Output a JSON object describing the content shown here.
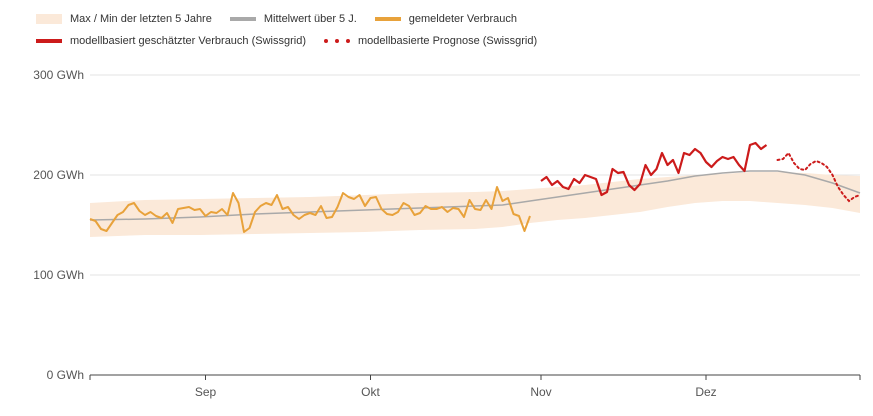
{
  "chart_data": {
    "type": "line",
    "title": "",
    "xlabel": "",
    "ylabel": "",
    "ylim": [
      0,
      300
    ],
    "y_unit": "GWh",
    "y_ticks": [
      {
        "value": 0,
        "label": "0 GWh"
      },
      {
        "value": 100,
        "label": "100 GWh"
      },
      {
        "value": 200,
        "label": "200 GWh"
      },
      {
        "value": 300,
        "label": "300 GWh"
      }
    ],
    "x_range_days": [
      0,
      140
    ],
    "x_ticks": [
      {
        "day": 21,
        "label": "Sep"
      },
      {
        "day": 51,
        "label": "Okt"
      },
      {
        "day": 82,
        "label": "Nov"
      },
      {
        "day": 112,
        "label": "Dez"
      }
    ],
    "grid": true,
    "legend": [
      {
        "key": "band",
        "label": "Max / Min der letzten 5 Jahre"
      },
      {
        "key": "mean",
        "label": "Mittelwert über 5 J."
      },
      {
        "key": "reported",
        "label": "gemeldeter Verbrauch"
      },
      {
        "key": "estimated",
        "label": "modellbasiert geschätzter Verbrauch (Swissgrid)"
      },
      {
        "key": "forecast",
        "label": "modellbasierte Prognose (Swissgrid)"
      }
    ],
    "colors": {
      "band": "#fbe9d9",
      "mean": "#a9a9a9",
      "reported": "#e8a23b",
      "estimated": "#cc1b1b",
      "forecast": "#cc1b1b",
      "grid": "#e3e3e3",
      "axis": "#444444"
    },
    "band": {
      "x": [
        0,
        10,
        20,
        30,
        40,
        50,
        60,
        70,
        75,
        80,
        85,
        90,
        95,
        100,
        105,
        110,
        115,
        120,
        125,
        130,
        135,
        140
      ],
      "max": [
        172,
        175,
        176,
        177,
        178,
        180,
        182,
        183,
        184,
        186,
        188,
        190,
        193,
        196,
        198,
        200,
        201,
        203,
        203,
        202,
        200,
        199
      ],
      "min": [
        138,
        140,
        140,
        141,
        142,
        143,
        145,
        146,
        148,
        152,
        155,
        157,
        160,
        163,
        168,
        172,
        174,
        174,
        172,
        170,
        167,
        162
      ]
    },
    "series": [
      {
        "name": "Mittelwert über 5 J.",
        "key": "mean",
        "x": [
          0,
          10,
          20,
          30,
          40,
          50,
          60,
          70,
          75,
          80,
          85,
          90,
          95,
          100,
          105,
          110,
          115,
          120,
          125,
          130,
          135,
          140
        ],
        "values": [
          155,
          156,
          158,
          161,
          163,
          165,
          167,
          169,
          170,
          174,
          178,
          182,
          186,
          190,
          194,
          199,
          202,
          204,
          204,
          200,
          192,
          182
        ]
      },
      {
        "name": "gemeldeter Verbrauch",
        "key": "reported",
        "x": [
          0,
          1,
          2,
          3,
          4,
          5,
          6,
          7,
          8,
          9,
          10,
          11,
          12,
          13,
          14,
          15,
          16,
          17,
          18,
          19,
          20,
          21,
          22,
          23,
          24,
          25,
          26,
          27,
          28,
          29,
          30,
          31,
          32,
          33,
          34,
          35,
          36,
          37,
          38,
          39,
          40,
          41,
          42,
          43,
          44,
          45,
          46,
          47,
          48,
          49,
          50,
          51,
          52,
          53,
          54,
          55,
          56,
          57,
          58,
          59,
          60,
          61,
          62,
          63,
          64,
          65,
          66,
          67,
          68,
          69,
          70,
          71,
          72,
          73,
          74,
          75,
          76,
          77,
          78,
          79,
          80
        ],
        "values": [
          156,
          154,
          146,
          144,
          152,
          160,
          163,
          170,
          172,
          164,
          160,
          163,
          159,
          157,
          162,
          152,
          166,
          167,
          168,
          165,
          166,
          159,
          163,
          162,
          166,
          160,
          182,
          172,
          143,
          147,
          163,
          169,
          172,
          170,
          180,
          166,
          168,
          160,
          156,
          160,
          162,
          160,
          169,
          157,
          158,
          168,
          182,
          178,
          176,
          180,
          169,
          177,
          178,
          166,
          161,
          160,
          163,
          172,
          169,
          160,
          162,
          169,
          166,
          166,
          168,
          163,
          167,
          166,
          158,
          175,
          166,
          165,
          175,
          166,
          188,
          174,
          177,
          161,
          159,
          144,
          159
        ]
      },
      {
        "name": "modellbasiert geschätzter Verbrauch (Swissgrid)",
        "key": "estimated",
        "x": [
          82,
          83,
          84,
          85,
          86,
          87,
          88,
          89,
          90,
          91,
          92,
          93,
          94,
          95,
          96,
          97,
          98,
          99,
          100,
          101,
          102,
          103,
          104,
          105,
          106,
          107,
          108,
          109,
          110,
          111,
          112,
          113,
          114,
          115,
          116,
          117,
          118,
          119,
          120,
          121,
          122,
          123
        ],
        "values": [
          194,
          198,
          190,
          194,
          188,
          186,
          196,
          192,
          200,
          198,
          196,
          180,
          183,
          206,
          202,
          203,
          190,
          185,
          191,
          210,
          200,
          206,
          222,
          210,
          215,
          202,
          222,
          220,
          226,
          222,
          213,
          208,
          214,
          218,
          216,
          218,
          210,
          204,
          230,
          232,
          226,
          230
        ]
      },
      {
        "name": "modellbasierte Prognose (Swissgrid)",
        "key": "forecast",
        "x": [
          125,
          126,
          127,
          128,
          129,
          130,
          131,
          132,
          133,
          134,
          135,
          136,
          137,
          138,
          139,
          140
        ],
        "values": [
          215,
          216,
          222,
          212,
          206,
          205,
          211,
          214,
          212,
          208,
          200,
          188,
          180,
          174,
          178,
          180
        ]
      }
    ]
  }
}
